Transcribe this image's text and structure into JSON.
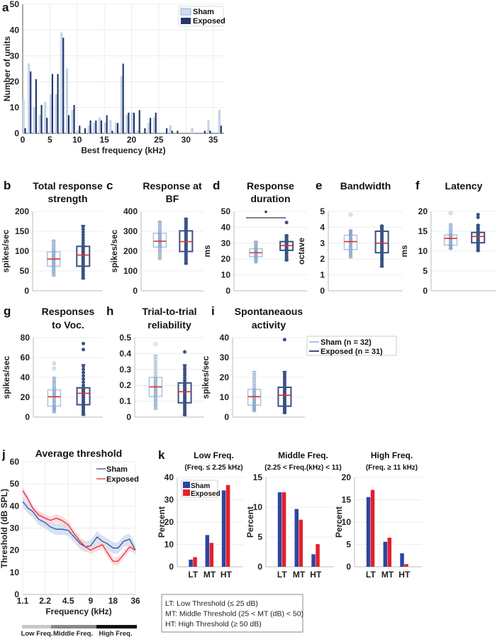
{
  "colors": {
    "sham_hist": "#cfdcef",
    "exposed_hist": "#24386e",
    "sham_box": "#a9c4e4",
    "exposed_box": "#3a5283",
    "median": "#e0302a",
    "sham_line": "#3a4fa0",
    "exposed_line": "#e8303a",
    "sham_band": "#c8d8ee",
    "exposed_band": "#f7d2d6",
    "sham_bar": "#2e44a0",
    "exposed_bar": "#e3202a",
    "grid": "#ececec"
  },
  "chart_data": [
    {
      "panel_label": "a",
      "type": "bar",
      "xlabel": "Best frequency (kHz)",
      "ylabel": "Number of units",
      "xlim": [
        0,
        37
      ],
      "ylim": [
        0,
        50
      ],
      "xticks": [
        0,
        5,
        10,
        15,
        20,
        25,
        30,
        35
      ],
      "yticks": [
        0,
        10,
        20,
        30,
        40,
        50
      ],
      "grid": true,
      "legend_position": "top-right",
      "categories": [
        0,
        1,
        2,
        3,
        4,
        5,
        6,
        7,
        8,
        9,
        10,
        11,
        12,
        13,
        14,
        15,
        16,
        17,
        18,
        19,
        20,
        21,
        22,
        23,
        24,
        25,
        26,
        27,
        28,
        29,
        30,
        31,
        32,
        33,
        34,
        35,
        36
      ],
      "series": [
        {
          "name": "Sham",
          "values": [
            13,
            27,
            10,
            7,
            12,
            15,
            15,
            39,
            25,
            9,
            1,
            0,
            3,
            4,
            6,
            4,
            5,
            4,
            22,
            7,
            8,
            1,
            0,
            4,
            6,
            0,
            0,
            3,
            0,
            0,
            0,
            2,
            0,
            0,
            5,
            0,
            9
          ]
        },
        {
          "name": "Exposed",
          "values": [
            2,
            24,
            21,
            11,
            6,
            23,
            23,
            37,
            7,
            11,
            3,
            2,
            5,
            5,
            5,
            7,
            1,
            4,
            27,
            8,
            8,
            9,
            2,
            6,
            8,
            0,
            2,
            1,
            1,
            0,
            0,
            0,
            0,
            1,
            1,
            0,
            3
          ]
        }
      ]
    },
    {
      "panel_label": "b",
      "type": "box",
      "title_lines": [
        "Total response",
        "strength"
      ],
      "ylabel": "spikes/sec",
      "ylim": [
        0,
        200
      ],
      "yticks": [
        0,
        50,
        100,
        150,
        200
      ],
      "groups": [
        {
          "name": "Sham",
          "n": 32,
          "min": 38,
          "q1": 62,
          "median": 80,
          "q3": 98,
          "max": 127,
          "outliers": []
        },
        {
          "name": "Exposed",
          "n": 31,
          "min": 30,
          "q1": 62,
          "median": 90,
          "q3": 112,
          "max": 165,
          "outliers": []
        }
      ]
    },
    {
      "panel_label": "c",
      "type": "box",
      "title_lines": [
        "Response at",
        "BF"
      ],
      "ylabel": "spikes/sec",
      "ylim": [
        0,
        400
      ],
      "yticks": [
        0,
        100,
        200,
        300,
        400
      ],
      "groups": [
        {
          "name": "Sham",
          "n": 32,
          "min": 160,
          "q1": 220,
          "median": 250,
          "q3": 290,
          "max": 350,
          "outliers": []
        },
        {
          "name": "Exposed",
          "n": 31,
          "min": 135,
          "q1": 198,
          "median": 248,
          "q3": 302,
          "max": 365,
          "outliers": []
        }
      ]
    },
    {
      "panel_label": "d",
      "type": "box",
      "title_lines": [
        "Response",
        "duration"
      ],
      "ylabel": "ms",
      "ylim": [
        0,
        50
      ],
      "yticks": [
        0,
        10,
        20,
        30,
        40,
        50
      ],
      "significance": "*",
      "groups": [
        {
          "name": "Sham",
          "n": 32,
          "min": 18,
          "q1": 21.5,
          "median": 24,
          "q3": 26.5,
          "max": 31,
          "outliers": []
        },
        {
          "name": "Exposed",
          "n": 31,
          "min": 19,
          "q1": 25.5,
          "median": 28.5,
          "q3": 31,
          "max": 35,
          "outliers": [
            43
          ]
        }
      ]
    },
    {
      "panel_label": "e",
      "type": "box",
      "title_lines": [
        "Bandwidth"
      ],
      "ylabel": "octave",
      "ylim": [
        0,
        5
      ],
      "yticks": [
        0,
        1,
        2,
        3,
        4,
        5
      ],
      "groups": [
        {
          "name": "Sham",
          "n": 32,
          "min": 2.1,
          "q1": 2.6,
          "median": 3.1,
          "q3": 3.5,
          "max": 3.8,
          "outliers": [
            4.8
          ]
        },
        {
          "name": "Exposed",
          "n": 31,
          "min": 1.5,
          "q1": 2.4,
          "median": 3.0,
          "q3": 3.75,
          "max": 4.1,
          "outliers": []
        }
      ]
    },
    {
      "panel_label": "f",
      "type": "box",
      "title_lines": [
        "Latency"
      ],
      "ylabel": "ms",
      "ylim": [
        0,
        20
      ],
      "yticks": [
        0,
        5,
        10,
        15,
        20
      ],
      "groups": [
        {
          "name": "Sham",
          "n": 32,
          "min": 10.6,
          "q1": 11.5,
          "median": 13.2,
          "q3": 14.1,
          "max": 16.8,
          "outliers": [
            19.5
          ]
        },
        {
          "name": "Exposed",
          "n": 31,
          "min": 10,
          "q1": 12.1,
          "median": 13.7,
          "q3": 14.7,
          "max": 16.6,
          "outliers": [
            18.5,
            19.2
          ]
        }
      ]
    },
    {
      "panel_label": "g",
      "type": "box",
      "title_lines": [
        "Responses",
        "to Voc."
      ],
      "ylabel": "spikes/sec",
      "ylim": [
        0,
        80
      ],
      "yticks": [
        0,
        20,
        40,
        60,
        80
      ],
      "groups": [
        {
          "name": "Sham",
          "n": 32,
          "min": 5,
          "q1": 11,
          "median": 20.5,
          "q3": 27.5,
          "max": 40,
          "outliers": [
            49,
            54
          ]
        },
        {
          "name": "Exposed",
          "n": 31,
          "min": 2,
          "q1": 12.5,
          "median": 24,
          "q3": 29.5,
          "max": 53,
          "outliers": [
            68,
            74
          ]
        }
      ]
    },
    {
      "panel_label": "h",
      "type": "box",
      "title_lines": [
        "Trial-to-trial",
        "reliability"
      ],
      "ylabel": "",
      "ylim": [
        0,
        0.5
      ],
      "yticks": [
        0,
        0.1,
        0.2,
        0.3,
        0.4,
        0.5
      ],
      "groups": [
        {
          "name": "Sham",
          "n": 32,
          "min": 0.05,
          "q1": 0.13,
          "median": 0.19,
          "q3": 0.25,
          "max": 0.39,
          "outliers": [
            0.46
          ]
        },
        {
          "name": "Exposed",
          "n": 31,
          "min": 0.01,
          "q1": 0.09,
          "median": 0.16,
          "q3": 0.215,
          "max": 0.33,
          "outliers": [
            0.41
          ]
        }
      ]
    },
    {
      "panel_label": "i",
      "type": "box",
      "title_lines": [
        "Spontaneaous",
        "activity"
      ],
      "ylabel": "spikes/sec",
      "ylim": [
        0,
        40
      ],
      "yticks": [
        0,
        10,
        20,
        30,
        40
      ],
      "groups": [
        {
          "name": "Sham",
          "n": 32,
          "min": 3,
          "q1": 6,
          "median": 10.3,
          "q3": 14,
          "max": 23,
          "outliers": []
        },
        {
          "name": "Exposed",
          "n": 31,
          "min": 2,
          "q1": 5.5,
          "median": 11,
          "q3": 15,
          "max": 23,
          "outliers": [
            39
          ]
        }
      ]
    },
    {
      "panel_label": "j",
      "type": "line",
      "title": "Average threshold",
      "xlabel": "Frequency (kHz)",
      "ylabel": "Threshold (dB SPL)",
      "xscale": "log",
      "xlim": [
        1.1,
        36
      ],
      "ylim": [
        0,
        60
      ],
      "xticks": [
        1.1,
        2.2,
        4.5,
        9,
        18,
        36
      ],
      "yticks": [
        0,
        10,
        20,
        30,
        40,
        50,
        60
      ],
      "grid": true,
      "legend_position": "top-right",
      "x": [
        1.1,
        1.3,
        1.5,
        1.8,
        2.2,
        2.6,
        3.1,
        3.7,
        4.5,
        5.4,
        6.5,
        7.7,
        9,
        11,
        13,
        15,
        18,
        21,
        25,
        30,
        36
      ],
      "series": [
        {
          "name": "Sham",
          "values": [
            42,
            39,
            37.5,
            34,
            32.5,
            30.5,
            29.5,
            29.5,
            29,
            26,
            23,
            21.5,
            22,
            26,
            24,
            23,
            21,
            21,
            24,
            25,
            20
          ],
          "ci": 2.5
        },
        {
          "name": "Exposed",
          "values": [
            47,
            43,
            39,
            36,
            34.5,
            33.5,
            34.5,
            33.5,
            31.5,
            27.5,
            24,
            21.5,
            20,
            21.5,
            22.5,
            19,
            15,
            15,
            18,
            21.5,
            20
          ],
          "ci": 1.8
        }
      ],
      "frequency_bands": [
        "Low Freq.",
        "Middle Freq.",
        "High Freq."
      ]
    },
    {
      "panel_label": "k",
      "type": "bar",
      "legend": [
        "Sham",
        "Exposed"
      ],
      "legend_position": "top-left",
      "subplots": [
        {
          "title": "Low Freq.",
          "subtitle": "(Freq. ≤ 2.25 kHz)",
          "ylabel": "Percent",
          "ylim": [
            0,
            40
          ],
          "yticks": [
            0,
            10,
            20,
            30,
            40
          ],
          "categories": [
            "LT",
            "MT",
            "HT"
          ],
          "series": [
            {
              "name": "Sham",
              "values": [
                3.2,
                14.2,
                34.2
              ]
            },
            {
              "name": "Exposed",
              "values": [
                4.3,
                10.7,
                36.6
              ]
            }
          ]
        },
        {
          "title": "Middle Freq.",
          "subtitle": "(2.25 < Freq.(kHz) < 11)",
          "ylabel": "Percent",
          "ylim": [
            0,
            15
          ],
          "yticks": [
            0,
            5,
            10,
            15
          ],
          "categories": [
            "LT",
            "MT",
            "HT"
          ],
          "series": [
            {
              "name": "Sham",
              "values": [
                12.5,
                9.7,
                2.1
              ]
            },
            {
              "name": "Exposed",
              "values": [
                12.5,
                7.9,
                3.8
              ]
            }
          ]
        },
        {
          "title": "High Freq.",
          "subtitle": "(Freq. ≥ 11 kHz)",
          "ylabel": "Percent",
          "ylim": [
            0,
            20
          ],
          "yticks": [
            0,
            5,
            10,
            15,
            20
          ],
          "categories": [
            "LT",
            "MT",
            "HT"
          ],
          "series": [
            {
              "name": "Sham",
              "values": [
                15.6,
                5.6,
                3.0
              ]
            },
            {
              "name": "Exposed",
              "values": [
                17.2,
                6.5,
                0.6
              ]
            }
          ]
        }
      ],
      "notes": [
        "LT: Low Threshold (≤ 25 dB)",
        "MT: Middle Threshold (25 < MT (dB) < 50)",
        "HT: High Threshold (≥ 50 dB)"
      ]
    }
  ],
  "box_legend": [
    "Sham (n = 32)",
    "Exposed (n = 31)"
  ]
}
